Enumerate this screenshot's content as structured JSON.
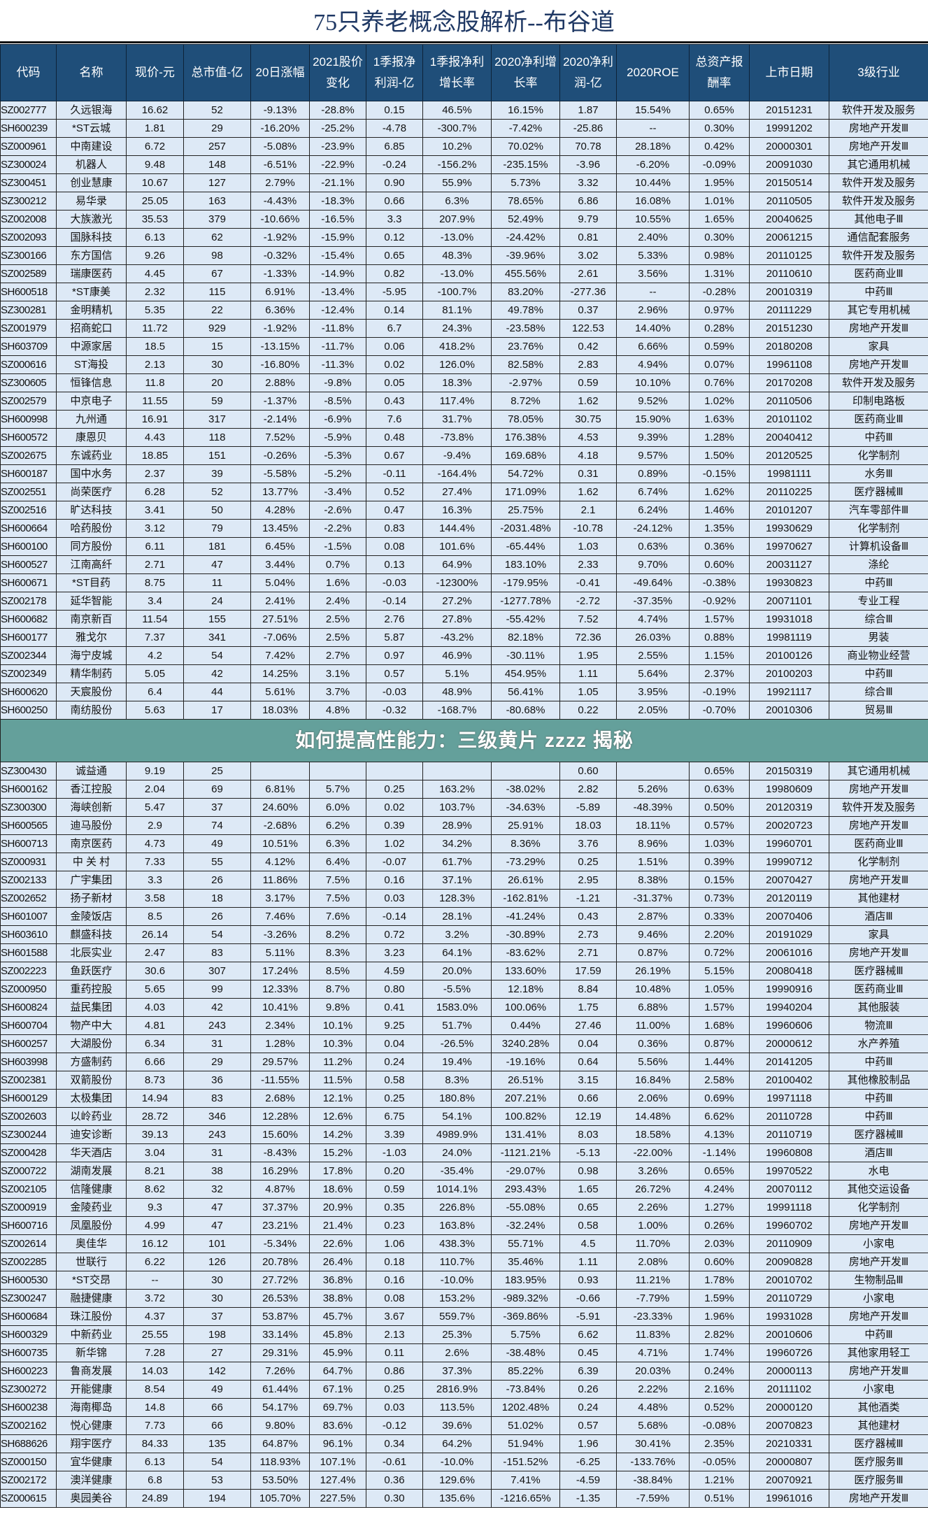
{
  "title": "75只养老概念股解析--布谷道",
  "headers": [
    "代码",
    "名称",
    "现价-元",
    "总市值-亿",
    "20日涨幅",
    "2021股价变化",
    "1季报净利润-亿",
    "1季报净利增长率",
    "2020净利增长率",
    "2020净利润-亿",
    "2020ROE",
    "总资产报酬率",
    "上市日期",
    "3级行业"
  ],
  "colors": {
    "header_bg": "#1f4e79",
    "row_bg": "#dde9f6",
    "title": "#1f3864",
    "banner": "#64a09b"
  },
  "banner_text": "如何提高性能力：三级黄片 zzzz 揭秘",
  "rows": [
    [
      "SZ002777",
      "久远银海",
      "16.62",
      "52",
      "-9.13%",
      "-28.8%",
      "0.15",
      "46.5%",
      "16.15%",
      "1.87",
      "15.54%",
      "0.65%",
      "20151231",
      "软件开发及服务"
    ],
    [
      "SH600239",
      "*ST云城",
      "1.81",
      "29",
      "-16.20%",
      "-25.2%",
      "-4.78",
      "-300.7%",
      "-7.42%",
      "-25.86",
      "--",
      "0.30%",
      "19991202",
      "房地产开发Ⅲ"
    ],
    [
      "SZ000961",
      "中南建设",
      "6.72",
      "257",
      "-5.08%",
      "-23.9%",
      "6.85",
      "10.2%",
      "70.02%",
      "70.78",
      "28.18%",
      "0.42%",
      "20000301",
      "房地产开发Ⅲ"
    ],
    [
      "SZ300024",
      "机器人",
      "9.48",
      "148",
      "-6.51%",
      "-22.9%",
      "-0.24",
      "-156.2%",
      "-235.15%",
      "-3.96",
      "-6.20%",
      "-0.09%",
      "20091030",
      "其它通用机械"
    ],
    [
      "SZ300451",
      "创业慧康",
      "10.67",
      "127",
      "2.79%",
      "-21.1%",
      "0.90",
      "55.9%",
      "5.73%",
      "3.32",
      "10.44%",
      "1.95%",
      "20150514",
      "软件开发及服务"
    ],
    [
      "SZ300212",
      "易华录",
      "25.05",
      "163",
      "-4.43%",
      "-18.3%",
      "0.66",
      "6.3%",
      "78.65%",
      "6.86",
      "16.08%",
      "1.01%",
      "20110505",
      "软件开发及服务"
    ],
    [
      "SZ002008",
      "大族激光",
      "35.53",
      "379",
      "-10.66%",
      "-16.5%",
      "3.3",
      "207.9%",
      "52.49%",
      "9.79",
      "10.55%",
      "1.65%",
      "20040625",
      "其他电子Ⅲ"
    ],
    [
      "SZ002093",
      "国脉科技",
      "6.13",
      "62",
      "-1.92%",
      "-15.9%",
      "0.12",
      "-13.0%",
      "-24.42%",
      "0.81",
      "2.40%",
      "0.30%",
      "20061215",
      "通信配套服务"
    ],
    [
      "SZ300166",
      "东方国信",
      "9.26",
      "98",
      "-0.32%",
      "-15.4%",
      "0.65",
      "48.3%",
      "-39.96%",
      "3.02",
      "5.33%",
      "0.98%",
      "20110125",
      "软件开发及服务"
    ],
    [
      "SZ002589",
      "瑞康医药",
      "4.45",
      "67",
      "-1.33%",
      "-14.9%",
      "0.82",
      "-13.0%",
      "455.56%",
      "2.61",
      "3.56%",
      "1.31%",
      "20110610",
      "医药商业Ⅲ"
    ],
    [
      "SH600518",
      "*ST康美",
      "2.32",
      "115",
      "6.91%",
      "-13.4%",
      "-5.95",
      "-100.7%",
      "83.20%",
      "-277.36",
      "--",
      "-0.28%",
      "20010319",
      "中药Ⅲ"
    ],
    [
      "SZ300281",
      "金明精机",
      "5.35",
      "22",
      "6.36%",
      "-12.4%",
      "0.14",
      "81.1%",
      "49.78%",
      "0.37",
      "2.96%",
      "0.97%",
      "20111229",
      "其它专用机械"
    ],
    [
      "SZ001979",
      "招商蛇口",
      "11.72",
      "929",
      "-1.92%",
      "-11.8%",
      "6.7",
      "24.3%",
      "-23.58%",
      "122.53",
      "14.40%",
      "0.28%",
      "20151230",
      "房地产开发Ⅲ"
    ],
    [
      "SH603709",
      "中源家居",
      "18.5",
      "15",
      "-13.15%",
      "-11.7%",
      "0.06",
      "418.2%",
      "23.76%",
      "0.42",
      "6.66%",
      "0.59%",
      "20180208",
      "家具"
    ],
    [
      "SZ000616",
      "ST海投",
      "2.13",
      "30",
      "-16.80%",
      "-11.3%",
      "0.02",
      "126.0%",
      "82.58%",
      "2.83",
      "4.94%",
      "0.07%",
      "19961108",
      "房地产开发Ⅲ"
    ],
    [
      "SZ300605",
      "恒锋信息",
      "11.8",
      "20",
      "2.88%",
      "-9.8%",
      "0.05",
      "18.3%",
      "-2.97%",
      "0.59",
      "10.10%",
      "0.76%",
      "20170208",
      "软件开发及服务"
    ],
    [
      "SZ002579",
      "中京电子",
      "11.55",
      "59",
      "-1.37%",
      "-8.5%",
      "0.43",
      "117.4%",
      "8.72%",
      "1.62",
      "9.52%",
      "1.02%",
      "20110506",
      "印制电路板"
    ],
    [
      "SH600998",
      "九州通",
      "16.91",
      "317",
      "-2.14%",
      "-6.9%",
      "7.6",
      "31.7%",
      "78.05%",
      "30.75",
      "15.90%",
      "1.63%",
      "20101102",
      "医药商业Ⅲ"
    ],
    [
      "SH600572",
      "康恩贝",
      "4.43",
      "118",
      "7.52%",
      "-5.9%",
      "0.48",
      "-73.8%",
      "176.38%",
      "4.53",
      "9.39%",
      "1.28%",
      "20040412",
      "中药Ⅲ"
    ],
    [
      "SZ002675",
      "东诚药业",
      "18.85",
      "151",
      "-0.26%",
      "-5.3%",
      "0.67",
      "-9.4%",
      "169.68%",
      "4.18",
      "9.57%",
      "1.50%",
      "20120525",
      "化学制剂"
    ],
    [
      "SH600187",
      "国中水务",
      "2.37",
      "39",
      "-5.58%",
      "-5.2%",
      "-0.11",
      "-164.4%",
      "54.72%",
      "0.31",
      "0.89%",
      "-0.15%",
      "19981111",
      "水务Ⅲ"
    ],
    [
      "SZ002551",
      "尚荣医疗",
      "6.28",
      "52",
      "13.77%",
      "-3.4%",
      "0.52",
      "27.4%",
      "171.09%",
      "1.62",
      "6.74%",
      "1.62%",
      "20110225",
      "医疗器械Ⅲ"
    ],
    [
      "SZ002516",
      "旷达科技",
      "3.41",
      "50",
      "4.28%",
      "-2.6%",
      "0.47",
      "16.3%",
      "25.75%",
      "2.1",
      "6.24%",
      "1.46%",
      "20101207",
      "汽车零部件Ⅲ"
    ],
    [
      "SH600664",
      "哈药股份",
      "3.12",
      "79",
      "13.45%",
      "-2.2%",
      "0.83",
      "144.4%",
      "-2031.48%",
      "-10.78",
      "-24.12%",
      "1.35%",
      "19930629",
      "化学制剂"
    ],
    [
      "SH600100",
      "同方股份",
      "6.11",
      "181",
      "6.45%",
      "-1.5%",
      "0.08",
      "101.6%",
      "-65.44%",
      "1.03",
      "0.63%",
      "0.36%",
      "19970627",
      "计算机设备Ⅲ"
    ],
    [
      "SH600527",
      "江南高纤",
      "2.71",
      "47",
      "3.44%",
      "0.7%",
      "0.13",
      "64.9%",
      "183.10%",
      "2.33",
      "9.70%",
      "0.60%",
      "20031127",
      "涤纶"
    ],
    [
      "SH600671",
      "*ST目药",
      "8.75",
      "11",
      "5.04%",
      "1.6%",
      "-0.03",
      "-12300%",
      "-179.95%",
      "-0.41",
      "-49.64%",
      "-0.38%",
      "19930823",
      "中药Ⅲ"
    ],
    [
      "SZ002178",
      "延华智能",
      "3.4",
      "24",
      "2.41%",
      "2.4%",
      "-0.14",
      "27.2%",
      "-1277.78%",
      "-2.72",
      "-37.35%",
      "-0.92%",
      "20071101",
      "专业工程"
    ],
    [
      "SH600682",
      "南京新百",
      "11.54",
      "155",
      "27.51%",
      "2.5%",
      "2.76",
      "27.8%",
      "-55.42%",
      "7.52",
      "4.74%",
      "1.57%",
      "19931018",
      "综合Ⅲ"
    ],
    [
      "SH600177",
      "雅戈尔",
      "7.37",
      "341",
      "-7.06%",
      "2.5%",
      "5.87",
      "-43.2%",
      "82.18%",
      "72.36",
      "26.03%",
      "0.88%",
      "19981119",
      "男装"
    ],
    [
      "SZ002344",
      "海宁皮城",
      "4.2",
      "54",
      "7.42%",
      "2.7%",
      "0.97",
      "46.9%",
      "-30.11%",
      "1.95",
      "2.55%",
      "1.15%",
      "20100126",
      "商业物业经营"
    ],
    [
      "SZ002349",
      "精华制药",
      "5.05",
      "42",
      "14.25%",
      "3.1%",
      "0.57",
      "5.1%",
      "454.95%",
      "1.11",
      "5.64%",
      "2.37%",
      "20100203",
      "中药Ⅲ"
    ],
    [
      "SH600620",
      "天宸股份",
      "6.4",
      "44",
      "5.61%",
      "3.7%",
      "-0.03",
      "48.9%",
      "56.41%",
      "1.05",
      "3.95%",
      "-0.19%",
      "19921117",
      "综合Ⅲ"
    ],
    [
      "SH600250",
      "南纺股份",
      "5.63",
      "17",
      "18.03%",
      "4.8%",
      "-0.32",
      "-168.7%",
      "-80.68%",
      "0.22",
      "2.05%",
      "-0.70%",
      "20010306",
      "贸易Ⅲ"
    ],
    [
      "SZ300430",
      "诚益通",
      "9.19",
      "25",
      "",
      "",
      "",
      "",
      "",
      "0.60",
      "",
      "0.65%",
      "20150319",
      "其它通用机械"
    ],
    [
      "SH600162",
      "香江控股",
      "2.04",
      "69",
      "6.81%",
      "5.7%",
      "0.25",
      "163.2%",
      "-38.02%",
      "2.82",
      "5.26%",
      "0.63%",
      "19980609",
      "房地产开发Ⅲ"
    ],
    [
      "SZ300300",
      "海峡创新",
      "5.47",
      "37",
      "24.60%",
      "6.0%",
      "0.02",
      "103.7%",
      "-34.63%",
      "-5.89",
      "-48.39%",
      "0.50%",
      "20120319",
      "软件开发及服务"
    ],
    [
      "SH600565",
      "迪马股份",
      "2.9",
      "74",
      "-2.68%",
      "6.2%",
      "0.39",
      "28.9%",
      "25.91%",
      "18.03",
      "18.11%",
      "0.57%",
      "20020723",
      "房地产开发Ⅲ"
    ],
    [
      "SH600713",
      "南京医药",
      "4.73",
      "49",
      "10.51%",
      "6.3%",
      "1.02",
      "34.2%",
      "8.36%",
      "3.76",
      "8.96%",
      "1.03%",
      "19960701",
      "医药商业Ⅲ"
    ],
    [
      "SZ000931",
      "中 关 村",
      "7.33",
      "55",
      "4.12%",
      "6.4%",
      "-0.07",
      "61.7%",
      "-73.29%",
      "0.25",
      "1.51%",
      "0.39%",
      "19990712",
      "化学制剂"
    ],
    [
      "SZ002133",
      "广宇集团",
      "3.3",
      "26",
      "11.86%",
      "7.5%",
      "0.16",
      "37.1%",
      "26.61%",
      "2.95",
      "8.38%",
      "0.15%",
      "20070427",
      "房地产开发Ⅲ"
    ],
    [
      "SZ002652",
      "扬子新材",
      "3.58",
      "18",
      "3.17%",
      "7.5%",
      "0.03",
      "128.3%",
      "-162.81%",
      "-1.21",
      "-31.37%",
      "0.73%",
      "20120119",
      "其他建材"
    ],
    [
      "SH601007",
      "金陵饭店",
      "8.5",
      "26",
      "7.46%",
      "7.6%",
      "-0.14",
      "28.1%",
      "-41.24%",
      "0.43",
      "2.87%",
      "0.33%",
      "20070406",
      "酒店Ⅲ"
    ],
    [
      "SH603610",
      "麒盛科技",
      "26.14",
      "54",
      "-3.26%",
      "8.2%",
      "0.72",
      "3.2%",
      "-30.89%",
      "2.73",
      "9.46%",
      "2.20%",
      "20191029",
      "家具"
    ],
    [
      "SH601588",
      "北辰实业",
      "2.47",
      "83",
      "5.11%",
      "8.3%",
      "3.23",
      "64.1%",
      "-83.62%",
      "2.71",
      "0.87%",
      "0.72%",
      "20061016",
      "房地产开发Ⅲ"
    ],
    [
      "SZ002223",
      "鱼跃医疗",
      "30.6",
      "307",
      "17.24%",
      "8.5%",
      "4.59",
      "20.0%",
      "133.60%",
      "17.59",
      "26.19%",
      "5.15%",
      "20080418",
      "医疗器械Ⅲ"
    ],
    [
      "SZ000950",
      "重药控股",
      "5.65",
      "99",
      "12.33%",
      "8.7%",
      "0.80",
      "-5.5%",
      "12.18%",
      "8.84",
      "10.48%",
      "1.05%",
      "19990916",
      "医药商业Ⅲ"
    ],
    [
      "SH600824",
      "益民集团",
      "4.03",
      "42",
      "10.41%",
      "9.8%",
      "0.41",
      "1583.0%",
      "100.06%",
      "1.75",
      "6.88%",
      "1.57%",
      "19940204",
      "其他服装"
    ],
    [
      "SH600704",
      "物产中大",
      "4.81",
      "243",
      "2.34%",
      "10.1%",
      "9.25",
      "51.7%",
      "0.44%",
      "27.46",
      "11.00%",
      "1.68%",
      "19960606",
      "物流Ⅲ"
    ],
    [
      "SH600257",
      "大湖股份",
      "6.34",
      "31",
      "1.28%",
      "10.3%",
      "0.04",
      "-26.5%",
      "3240.28%",
      "0.04",
      "0.36%",
      "0.87%",
      "20000612",
      "水产养殖"
    ],
    [
      "SH603998",
      "方盛制药",
      "6.66",
      "29",
      "29.57%",
      "11.2%",
      "0.24",
      "19.4%",
      "-19.16%",
      "0.64",
      "5.56%",
      "1.44%",
      "20141205",
      "中药Ⅲ"
    ],
    [
      "SZ002381",
      "双箭股份",
      "8.73",
      "36",
      "-11.55%",
      "11.5%",
      "0.58",
      "8.3%",
      "26.51%",
      "3.15",
      "16.84%",
      "2.58%",
      "20100402",
      "其他橡胶制品"
    ],
    [
      "SH600129",
      "太极集团",
      "14.94",
      "83",
      "2.68%",
      "12.1%",
      "0.25",
      "180.8%",
      "207.21%",
      "0.66",
      "2.06%",
      "0.69%",
      "19971118",
      "中药Ⅲ"
    ],
    [
      "SZ002603",
      "以岭药业",
      "28.72",
      "346",
      "12.28%",
      "12.6%",
      "6.75",
      "54.1%",
      "100.82%",
      "12.19",
      "14.48%",
      "6.62%",
      "20110728",
      "中药Ⅲ"
    ],
    [
      "SZ300244",
      "迪安诊断",
      "39.13",
      "243",
      "15.60%",
      "14.2%",
      "3.39",
      "4989.9%",
      "131.41%",
      "8.03",
      "18.58%",
      "4.13%",
      "20110719",
      "医疗器械Ⅲ"
    ],
    [
      "SZ000428",
      "华天酒店",
      "3.04",
      "31",
      "-8.43%",
      "15.2%",
      "-1.03",
      "24.0%",
      "-1121.21%",
      "-5.13",
      "-22.00%",
      "-1.14%",
      "19960808",
      "酒店Ⅲ"
    ],
    [
      "SZ000722",
      "湖南发展",
      "8.21",
      "38",
      "16.29%",
      "17.8%",
      "0.20",
      "-35.4%",
      "-29.07%",
      "0.98",
      "3.26%",
      "0.65%",
      "19970522",
      "水电"
    ],
    [
      "SZ002105",
      "信隆健康",
      "8.62",
      "32",
      "4.87%",
      "18.6%",
      "0.59",
      "1014.1%",
      "293.43%",
      "1.65",
      "26.72%",
      "4.24%",
      "20070112",
      "其他交运设备"
    ],
    [
      "SZ000919",
      "金陵药业",
      "9.3",
      "47",
      "37.37%",
      "20.9%",
      "0.35",
      "226.8%",
      "-55.08%",
      "0.65",
      "2.26%",
      "1.27%",
      "19991118",
      "化学制剂"
    ],
    [
      "SH600716",
      "凤凰股份",
      "4.99",
      "47",
      "23.21%",
      "21.4%",
      "0.23",
      "163.8%",
      "-32.24%",
      "0.58",
      "1.00%",
      "0.26%",
      "19960702",
      "房地产开发Ⅲ"
    ],
    [
      "SZ002614",
      "奥佳华",
      "16.12",
      "101",
      "-5.34%",
      "22.6%",
      "1.06",
      "438.3%",
      "55.71%",
      "4.5",
      "11.70%",
      "2.03%",
      "20110909",
      "小家电"
    ],
    [
      "SZ002285",
      "世联行",
      "6.22",
      "126",
      "20.78%",
      "26.4%",
      "0.18",
      "110.7%",
      "35.46%",
      "1.11",
      "2.08%",
      "0.60%",
      "20090828",
      "房地产开发Ⅲ"
    ],
    [
      "SH600530",
      "*ST交昂",
      "--",
      "30",
      "27.72%",
      "36.8%",
      "0.16",
      "-10.0%",
      "183.95%",
      "0.93",
      "11.21%",
      "1.78%",
      "20010702",
      "生物制品Ⅲ"
    ],
    [
      "SZ300247",
      "融捷健康",
      "3.72",
      "30",
      "26.53%",
      "38.8%",
      "0.08",
      "153.2%",
      "-989.32%",
      "-0.66",
      "-7.79%",
      "1.59%",
      "20110729",
      "小家电"
    ],
    [
      "SH600684",
      "珠江股份",
      "4.37",
      "37",
      "53.87%",
      "45.7%",
      "3.67",
      "559.7%",
      "-369.86%",
      "-5.91",
      "-23.33%",
      "1.96%",
      "19931028",
      "房地产开发Ⅲ"
    ],
    [
      "SH600329",
      "中新药业",
      "25.55",
      "198",
      "33.14%",
      "45.8%",
      "2.13",
      "25.3%",
      "5.75%",
      "6.62",
      "11.83%",
      "2.82%",
      "20010606",
      "中药Ⅲ"
    ],
    [
      "SH600735",
      "新华锦",
      "7.28",
      "27",
      "29.31%",
      "45.9%",
      "0.11",
      "2.6%",
      "-38.48%",
      "0.45",
      "4.71%",
      "1.74%",
      "19960726",
      "其他家用轻工"
    ],
    [
      "SH600223",
      "鲁商发展",
      "14.03",
      "142",
      "7.26%",
      "64.7%",
      "0.86",
      "37.3%",
      "85.22%",
      "6.39",
      "20.03%",
      "0.24%",
      "20000113",
      "房地产开发Ⅲ"
    ],
    [
      "SZ300272",
      "开能健康",
      "8.54",
      "49",
      "61.44%",
      "67.1%",
      "0.25",
      "2816.9%",
      "-73.84%",
      "0.26",
      "2.22%",
      "2.16%",
      "20111102",
      "小家电"
    ],
    [
      "SH600238",
      "海南椰岛",
      "14.8",
      "66",
      "54.17%",
      "69.7%",
      "0.03",
      "113.5%",
      "1202.48%",
      "0.24",
      "4.48%",
      "0.52%",
      "20000120",
      "其他酒类"
    ],
    [
      "SZ002162",
      "悦心健康",
      "7.73",
      "66",
      "9.80%",
      "83.6%",
      "-0.12",
      "39.6%",
      "51.02%",
      "0.57",
      "5.68%",
      "-0.08%",
      "20070823",
      "其他建材"
    ],
    [
      "SH688626",
      "翔宇医疗",
      "84.33",
      "135",
      "64.87%",
      "96.1%",
      "0.34",
      "64.2%",
      "51.94%",
      "1.96",
      "30.41%",
      "2.35%",
      "20210331",
      "医疗器械Ⅲ"
    ],
    [
      "SZ000150",
      "宜华健康",
      "6.13",
      "54",
      "118.93%",
      "107.1%",
      "-0.61",
      "-10.0%",
      "-151.52%",
      "-6.25",
      "-133.76%",
      "-0.05%",
      "20000807",
      "医疗服务Ⅲ"
    ],
    [
      "SZ002172",
      "澳洋健康",
      "6.8",
      "53",
      "53.50%",
      "127.4%",
      "0.36",
      "129.6%",
      "7.41%",
      "-4.59",
      "-38.84%",
      "1.21%",
      "20070921",
      "医疗服务Ⅲ"
    ],
    [
      "SZ000615",
      "奥园美谷",
      "24.89",
      "194",
      "105.70%",
      "227.5%",
      "0.30",
      "135.6%",
      "-1216.65%",
      "-1.35",
      "-7.59%",
      "0.51%",
      "19961016",
      "房地产开发Ⅲ"
    ]
  ]
}
